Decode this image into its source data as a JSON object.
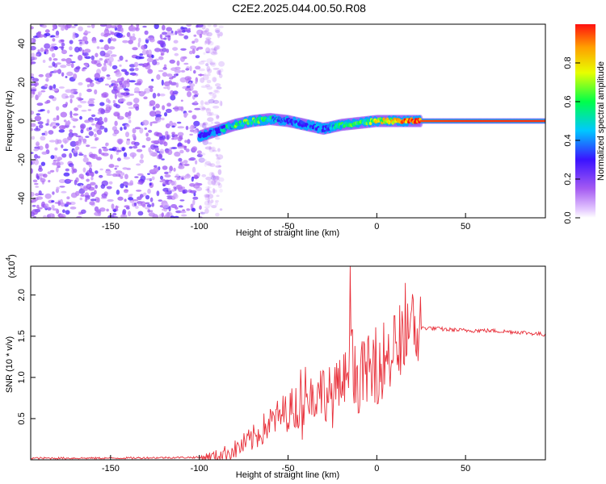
{
  "title": "C2E2.2025.044.00.50.R08",
  "chart_data": [
    {
      "type": "heatmap",
      "name": "spectrogram",
      "title": "C2E2.2025.044.00.50.R08",
      "xlabel": "Height of straight line (km)",
      "ylabel": "Frequency (Hz)",
      "xlim": [
        -195,
        95
      ],
      "ylim": [
        -50,
        50
      ],
      "x_ticks": [
        -150,
        -100,
        -50,
        0,
        50
      ],
      "y_ticks": [
        -40,
        -20,
        0,
        20,
        40
      ],
      "noise_region_x": [
        -195,
        -92
      ],
      "signal_trace": {
        "x": [
          -100,
          -90,
          -80,
          -70,
          -60,
          -50,
          -40,
          -30,
          -20,
          -10,
          0,
          10,
          20,
          50,
          95
        ],
        "freq": [
          -8,
          -5,
          -2,
          0,
          1,
          0,
          -2,
          -4,
          -2,
          -1,
          0,
          0,
          0,
          0,
          0
        ],
        "amplitude": [
          0.25,
          0.3,
          0.55,
          0.6,
          0.45,
          0.35,
          0.3,
          0.35,
          0.5,
          0.55,
          0.7,
          0.8,
          0.95,
          0.97,
          0.97
        ]
      }
    },
    {
      "type": "colorbar",
      "label": "Normalized spectral amplitude",
      "range": [
        0.0,
        1.0
      ],
      "ticks": [
        "0.0",
        "0.2",
        "0.4",
        "0.6",
        "0.8"
      ],
      "colors": [
        "#ffffff",
        "#a55bf2",
        "#3b13ff",
        "#00c8ff",
        "#00ff4a",
        "#e8ff00",
        "#ffa000",
        "#ff1010"
      ]
    },
    {
      "type": "line",
      "name": "snr",
      "xlabel": "Height of straight line (km)",
      "ylabel": "SNR (10 * v/v)",
      "y_multiplier": "(x10",
      "y_multiplier_exp": "4",
      "xlim": [
        -195,
        95
      ],
      "ylim": [
        0,
        2.35
      ],
      "x_ticks": [
        -150,
        -100,
        -50,
        0,
        50
      ],
      "y_ticks": [
        0.5,
        1.0,
        1.5,
        2.0
      ],
      "y_tick_labels": [
        "0.5",
        "1.0",
        "1.5",
        "2.0"
      ],
      "color": "#e8303a",
      "series": [
        {
          "name": "SNR",
          "x": [
            -195,
            -150,
            -100,
            -90,
            -80,
            -70,
            -60,
            -50,
            -40,
            -35,
            -30,
            -25,
            -20,
            -16,
            -15,
            -14,
            -10,
            -5,
            0,
            5,
            9,
            10,
            12,
            15,
            20,
            25,
            30,
            40,
            50,
            60,
            70,
            80,
            95
          ],
          "values": [
            0.02,
            0.02,
            0.03,
            0.05,
            0.12,
            0.25,
            0.45,
            0.6,
            0.7,
            0.8,
            0.85,
            0.75,
            0.9,
            1.0,
            2.35,
            1.0,
            1.0,
            1.05,
            1.15,
            1.25,
            1.3,
            1.75,
            1.25,
            1.45,
            1.55,
            1.6,
            1.6,
            1.58,
            1.57,
            1.57,
            1.56,
            1.55,
            1.52
          ]
        }
      ]
    }
  ]
}
